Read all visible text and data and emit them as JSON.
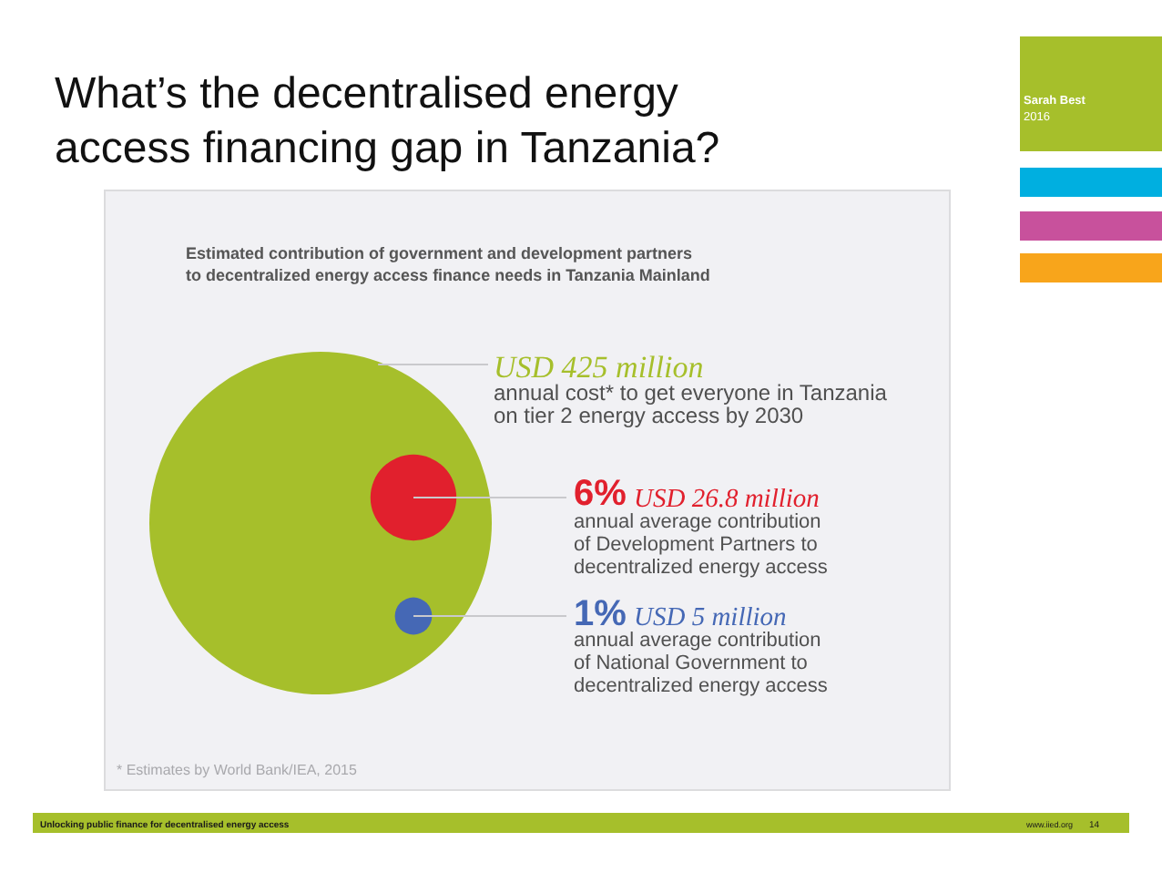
{
  "chart_data": {
    "type": "other",
    "title": "What’s the decentralised energy access financing gap in Tanzania?",
    "subtitle": "Estimated contribution of government and development partners to decentralized energy access finance needs in Tanzania Mainland",
    "categories": [
      "annual cost* to get everyone in Tanzania on tier 2 energy access by 2030",
      "annual average contribution of Development Partners to decentralized energy access",
      "annual average contribution of National Government to decentralized energy access"
    ],
    "values": [
      425000000,
      26800000,
      5000000
    ],
    "value_labels": [
      "USD 425 million",
      "USD 26.8 million",
      "USD 5 million"
    ],
    "colors": [
      "#a6bf2b",
      "#e1202d",
      "#4568b5"
    ],
    "annotations": [
      "6%",
      "1%",
      "* Estimates by World Bank/IEA, 2015",
      "Sarah Best",
      "2016",
      "Unlocking public finance for decentralised energy access",
      "www.iied.org",
      "14"
    ]
  }
}
